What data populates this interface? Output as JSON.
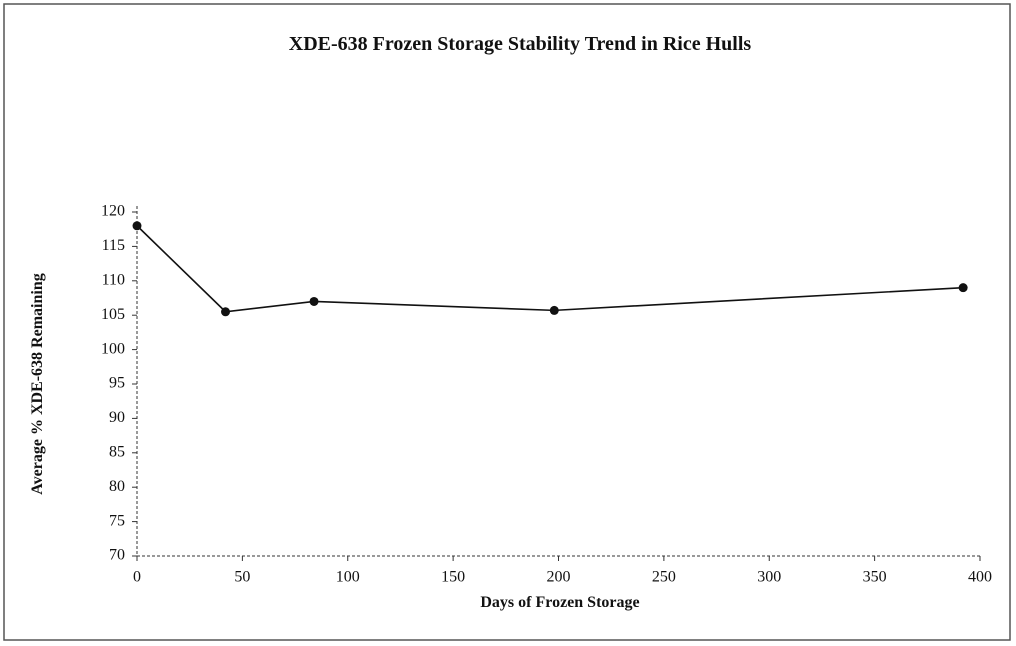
{
  "chart_data": {
    "type": "line",
    "title": "XDE-638 Frozen Storage Stability Trend in Rice Hulls",
    "x_label": "Days of Frozen Storage",
    "y_label": "Average % XDE-638 Remaining",
    "x": [
      0,
      42,
      84,
      198,
      392
    ],
    "series": [
      {
        "name": "XDE-638",
        "color": "#111111",
        "values": [
          118,
          105.5,
          107,
          105.7,
          109
        ]
      }
    ],
    "xlim": [
      0,
      400
    ],
    "xticks": [
      0,
      50,
      100,
      150,
      200,
      250,
      300,
      350,
      400
    ],
    "ylim": [
      70,
      120
    ],
    "yticks": [
      70,
      75,
      80,
      85,
      90,
      95,
      100,
      105,
      110,
      115,
      120
    ],
    "grid": false
  }
}
